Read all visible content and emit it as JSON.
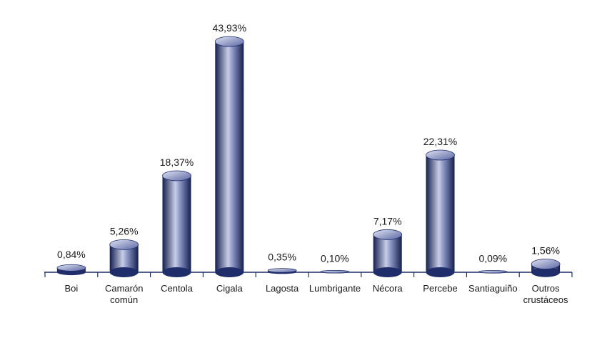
{
  "chart_data": {
    "type": "bar",
    "categories": [
      "Boi",
      "Camarón común",
      "Centola",
      "Cigala",
      "Lagosta",
      "Lumbrigante",
      "Nécora",
      "Percebe",
      "Santiaguiño",
      "Outros crustáceos"
    ],
    "values": [
      0.84,
      5.26,
      18.37,
      43.93,
      0.35,
      0.1,
      7.17,
      22.31,
      0.09,
      1.56
    ],
    "value_labels": [
      "0,84%",
      "5,26%",
      "18,37%",
      "43,93%",
      "0,35%",
      "0,10%",
      "7,17%",
      "22,31%",
      "0,09%",
      "1,56%"
    ],
    "color": "#1f2d6b"
  }
}
